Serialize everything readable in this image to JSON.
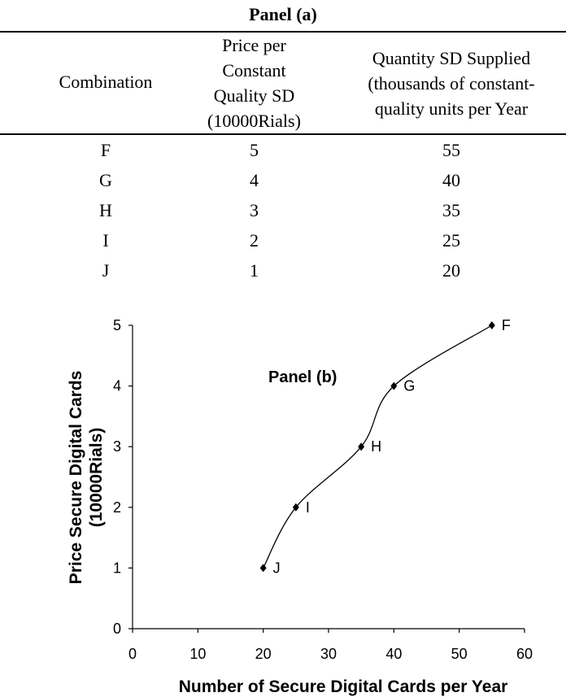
{
  "panel_a": {
    "title": "Panel (a)",
    "headers": {
      "combination": "Combination",
      "price": [
        "Price per",
        "Constant",
        "Quality SD",
        "(10000Rials)"
      ],
      "quantity": [
        "Quantity SD Supplied",
        "(thousands of constant-",
        "quality units per Year"
      ]
    },
    "rows": [
      {
        "combination": "F",
        "price": "5",
        "quantity": "55"
      },
      {
        "combination": "G",
        "price": "4",
        "quantity": "40"
      },
      {
        "combination": "H",
        "price": "3",
        "quantity": "35"
      },
      {
        "combination": "I",
        "price": "2",
        "quantity": "25"
      },
      {
        "combination": "J",
        "price": "1",
        "quantity": "20"
      }
    ]
  },
  "chart_data": {
    "type": "line",
    "title": "Panel (b)",
    "xlabel": "Number of Secure Digital Cards per Year",
    "ylabel": [
      "Price Secure Digital Cards",
      "(10000Rials)"
    ],
    "xlim": [
      0,
      60
    ],
    "ylim": [
      0,
      5
    ],
    "xticks": [
      0,
      10,
      20,
      30,
      40,
      50,
      60
    ],
    "yticks": [
      0,
      1,
      2,
      3,
      4,
      5
    ],
    "grid": false,
    "series": [
      {
        "points": [
          {
            "label": "J",
            "x": 20,
            "y": 1
          },
          {
            "label": "I",
            "x": 25,
            "y": 2
          },
          {
            "label": "H",
            "x": 35,
            "y": 3
          },
          {
            "label": "G",
            "x": 40,
            "y": 4
          },
          {
            "label": "F",
            "x": 55,
            "y": 5
          }
        ],
        "color": "#000000",
        "smooth": true,
        "marker": "diamond"
      }
    ]
  }
}
